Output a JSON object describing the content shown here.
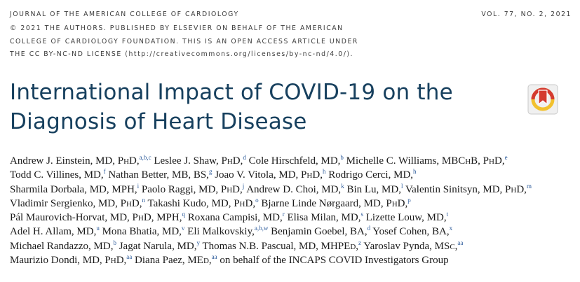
{
  "header": {
    "journal": "JOURNAL OF THE AMERICAN COLLEGE OF CARDIOLOGY",
    "volume": "VOL. 77, NO. 2, 2021",
    "copyright_line1": "© 2021 THE AUTHORS. PUBLISHED BY ELSEVIER ON BEHALF OF THE AMERICAN",
    "copyright_line2": "COLLEGE OF CARDIOLOGY FOUNDATION. THIS IS AN OPEN ACCESS ARTICLE UNDER",
    "copyright_line3": "THE CC BY-NC-ND LICENSE (http://creativecommons.org/licenses/by-nc-nd/4.0/)."
  },
  "title": {
    "line1": "International Impact of COVID-19 on the",
    "line2": "Diagnosis of Heart Disease"
  },
  "badge_icon": "crossmark-check-for-updates-icon",
  "colors": {
    "title": "#17405e",
    "superscript": "#2b5a9a",
    "badge_red": "#d43a2f",
    "badge_yellow": "#f2c12e"
  },
  "authors": [
    {
      "t": "Andrew J. Einstein, MD, P",
      "sc": "h",
      "t2": "D,",
      "sup": "a,b,c"
    },
    {
      "t": "Leslee J. Shaw, P",
      "sc": "h",
      "t2": "D,",
      "sup": "d"
    },
    {
      "t": "Cole Hirschfeld, MD,",
      "sup": "b"
    },
    {
      "t": "Michelle C. Williams, MBC",
      "sc": "h",
      "t2": "B, P",
      "sc2": "h",
      "t3": "D,",
      "sup": "e"
    },
    {
      "t": "Todd C. Villines, MD,",
      "sup": "f"
    },
    {
      "t": "Nathan Better, MB, BS,",
      "sup": "g"
    },
    {
      "t": "Joao V. Vitola, MD, P",
      "sc": "h",
      "t2": "D,",
      "sup": "h"
    },
    {
      "t": "Rodrigo Cerci, MD,",
      "sup": "h"
    },
    {
      "t": "Sharmila Dorbala, MD, MPH,",
      "sup": "i"
    },
    {
      "t": "Paolo Raggi, MD, P",
      "sc": "h",
      "t2": "D,",
      "sup": "j"
    },
    {
      "t": "Andrew D. Choi, MD,",
      "sup": "k"
    },
    {
      "t": "Bin Lu, MD,",
      "sup": "l"
    },
    {
      "t": "Valentin Sinitsyn, MD, P",
      "sc": "h",
      "t2": "D,",
      "sup": "m"
    },
    {
      "t": "Vladimir Sergienko, MD, P",
      "sc": "h",
      "t2": "D,",
      "sup": "n"
    },
    {
      "t": "Takashi Kudo, MD, P",
      "sc": "h",
      "t2": "D,",
      "sup": "o"
    },
    {
      "t": "Bjarne Linde Nørgaard, MD, P",
      "sc": "h",
      "t2": "D,",
      "sup": "p"
    },
    {
      "t": "Pál Maurovich-Horvat, MD, P",
      "sc": "h",
      "t2": "D, MPH,",
      "sup": "q"
    },
    {
      "t": "Roxana Campisi, MD,",
      "sup": "r"
    },
    {
      "t": "Elisa Milan, MD,",
      "sup": "s"
    },
    {
      "t": "Lizette Louw, MD,",
      "sup": "t"
    },
    {
      "t": "Adel H. Allam, MD,",
      "sup": "u"
    },
    {
      "t": "Mona Bhatia, MD,",
      "sup": "v"
    },
    {
      "t": "Eli Malkovskiy,",
      "sup": "a,b,w"
    },
    {
      "t": "Benjamin Goebel, BA,",
      "sup": "d"
    },
    {
      "t": "Yosef Cohen, BA,",
      "sup": "x"
    },
    {
      "t": "Michael Randazzo, MD,",
      "sup": "b"
    },
    {
      "t": "Jagat Narula, MD,",
      "sup": "y"
    },
    {
      "t": "Thomas N.B. Pascual, MD, MHPE",
      "sc": "d",
      "t2": ",",
      "sup": "z"
    },
    {
      "t": "Yaroslav Pynda, MS",
      "sc": "c",
      "t2": ",",
      "sup": "aa"
    },
    {
      "t": "Maurizio Dondi, MD, P",
      "sc": "h",
      "t2": "D,",
      "sup": "aa"
    },
    {
      "t": "Diana Paez, ME",
      "sc": "d",
      "t2": ",",
      "sup": "aa"
    },
    {
      "t": "on behalf of the INCAPS COVID Investigators Group"
    }
  ],
  "author_lines": [
    [
      0,
      1,
      2,
      3
    ],
    [
      4,
      5,
      6,
      7
    ],
    [
      8,
      9,
      10,
      11,
      12
    ],
    [
      13,
      14,
      15
    ],
    [
      16,
      17,
      18,
      19
    ],
    [
      20,
      21,
      22,
      23,
      24
    ],
    [
      25,
      26,
      27,
      28
    ],
    [
      29,
      30,
      31
    ]
  ]
}
